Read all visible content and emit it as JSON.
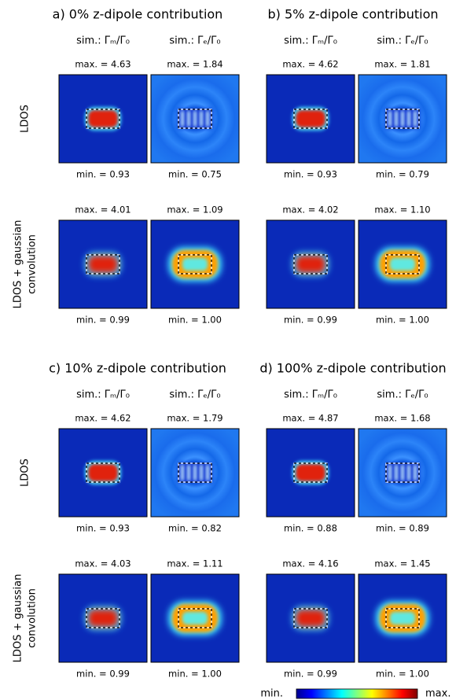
{
  "groups": [
    {
      "title": "a) 0% z-dipole contribution",
      "columns": [
        "sim.: Γₘ/Γ₀",
        "sim.: Γₑ/Γ₀"
      ],
      "rows": [
        {
          "panels": [
            {
              "max": "max. = 4.63",
              "min": "min. = 0.93"
            },
            {
              "max": "max. = 1.84",
              "min": "min. = 0.75"
            }
          ]
        },
        {
          "panels": [
            {
              "max": "max. = 4.01",
              "min": "min. = 0.99"
            },
            {
              "max": "max. = 1.09",
              "min": "min. = 1.00"
            }
          ]
        }
      ]
    },
    {
      "title": "b) 5% z-dipole contribution",
      "columns": [
        "sim.: Γₘ/Γ₀",
        "sim.: Γₑ/Γ₀"
      ],
      "rows": [
        {
          "panels": [
            {
              "max": "max. = 4.62",
              "min": "min. = 0.93"
            },
            {
              "max": "max. = 1.81",
              "min": "min. = 0.79"
            }
          ]
        },
        {
          "panels": [
            {
              "max": "max. = 4.02",
              "min": "min. = 0.99"
            },
            {
              "max": "max. = 1.10",
              "min": "min. = 1.00"
            }
          ]
        }
      ]
    },
    {
      "title": "c) 10% z-dipole contribution",
      "columns": [
        "sim.: Γₘ/Γ₀",
        "sim.: Γₑ/Γ₀"
      ],
      "rows": [
        {
          "panels": [
            {
              "max": "max. = 4.62",
              "min": "min. = 0.93"
            },
            {
              "max": "max. = 1.79",
              "min": "min. = 0.82"
            }
          ]
        },
        {
          "panels": [
            {
              "max": "max. = 4.03",
              "min": "min. = 0.99"
            },
            {
              "max": "max. = 1.11",
              "min": "min. = 1.00"
            }
          ]
        }
      ]
    },
    {
      "title": "d) 100% z-dipole contribution",
      "columns": [
        "sim.: Γₘ/Γ₀",
        "sim.: Γₑ/Γ₀"
      ],
      "rows": [
        {
          "panels": [
            {
              "max": "max. = 4.87",
              "min": "min. = 0.88"
            },
            {
              "max": "max. = 1.68",
              "min": "min. = 0.89"
            }
          ]
        },
        {
          "panels": [
            {
              "max": "max. = 4.16",
              "min": "min. = 0.99"
            },
            {
              "max": "max. = 1.45",
              "min": "min. = 1.00"
            }
          ]
        }
      ]
    }
  ],
  "row_labels": [
    [
      "LDOS"
    ],
    [
      "LDOS + gaussian",
      "convolution"
    ]
  ],
  "colorbar": {
    "min_label": "min.",
    "max_label": "max."
  }
}
